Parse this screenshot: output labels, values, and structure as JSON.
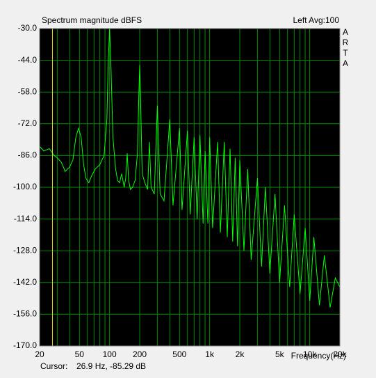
{
  "chart_data": {
    "type": "line",
    "title": "Spectrum magnitude dBFS",
    "channel_info": "Left  Avg:100",
    "side_letters": [
      "A",
      "R",
      "T",
      "A"
    ],
    "xlabel": "Frequency(Hz)",
    "cursor_label": "Cursor:",
    "cursor_text": "26.9 Hz, -85.29 dB",
    "cursor_freq": 26.9,
    "cursor_color": "#e0e000",
    "xscale": "log",
    "grid": true,
    "grid_color": "#008a00",
    "background": "#000000",
    "xlim": [
      20,
      20000
    ],
    "xticks": [
      20,
      50,
      100,
      200,
      500,
      {
        "value": 1000,
        "label": "1k"
      },
      {
        "value": 2000,
        "label": "2k"
      },
      {
        "value": 5000,
        "label": "5k"
      },
      {
        "value": 10000,
        "label": "10k"
      },
      {
        "value": 20000,
        "label": "20k"
      }
    ],
    "x_minor_grid": [
      30,
      40,
      60,
      70,
      80,
      90,
      300,
      400,
      600,
      700,
      800,
      900,
      3000,
      4000,
      6000,
      7000,
      8000,
      9000
    ],
    "ylim": [
      -170,
      -30
    ],
    "yticks": [
      {
        "value": -30,
        "label": "-30.0"
      },
      {
        "value": -44,
        "label": "-44.0"
      },
      {
        "value": -58,
        "label": "-58.0"
      },
      {
        "value": -72,
        "label": "-72.0"
      },
      {
        "value": -86,
        "label": "-86.0"
      },
      {
        "value": -100,
        "label": "-100.0"
      },
      {
        "value": -114,
        "label": "-114.0"
      },
      {
        "value": -128,
        "label": "-128.0"
      },
      {
        "value": -142,
        "label": "-142.0"
      },
      {
        "value": -156,
        "label": "-156.0"
      },
      {
        "value": -170,
        "label": "-170.0"
      }
    ],
    "x": [
      20,
      22,
      25,
      28,
      30,
      33,
      36,
      40,
      43,
      46,
      49,
      52,
      55,
      58,
      62,
      66,
      72,
      80,
      88,
      94,
      97,
      100,
      103,
      108,
      115,
      120,
      126,
      132,
      140,
      145,
      150,
      155,
      162,
      170,
      180,
      190,
      196,
      200,
      204,
      212,
      225,
      240,
      250,
      260,
      280,
      300,
      320,
      350,
      400,
      430,
      500,
      530,
      600,
      640,
      700,
      750,
      800,
      860,
      900,
      960,
      1000,
      1070,
      1200,
      1280,
      1400,
      1500,
      1600,
      1700,
      1800,
      1900,
      2000,
      2200,
      2400,
      2600,
      3000,
      3300,
      3600,
      4000,
      4500,
      5000,
      5600,
      6300,
      7000,
      8000,
      9000,
      10000,
      11000,
      12500,
      14000,
      16000,
      18000,
      20000
    ],
    "series": [
      {
        "color": "#00ff00",
        "values": [
          -82,
          -84,
          -83,
          -86,
          -87,
          -89,
          -93,
          -91,
          -88,
          -78,
          -74,
          -78,
          -90,
          -96,
          -98,
          -95,
          -92,
          -90,
          -86,
          -70,
          -45,
          -30,
          -45,
          -78,
          -92,
          -97,
          -98,
          -94,
          -100,
          -96,
          -85,
          -97,
          -101,
          -100,
          -97,
          -85,
          -60,
          -46,
          -60,
          -94,
          -98,
          -101,
          -80,
          -100,
          -103,
          -64,
          -103,
          -106,
          -70,
          -108,
          -74,
          -110,
          -75,
          -112,
          -78,
          -114,
          -77,
          -116,
          -84,
          -116,
          -78,
          -118,
          -80,
          -120,
          -80,
          -122,
          -83,
          -124,
          -87,
          -126,
          -88,
          -128,
          -92,
          -132,
          -96,
          -135,
          -100,
          -138,
          -103,
          -142,
          -108,
          -144,
          -112,
          -147,
          -118,
          -150,
          -122,
          -152,
          -130,
          -153,
          -140,
          -144
        ]
      }
    ]
  }
}
